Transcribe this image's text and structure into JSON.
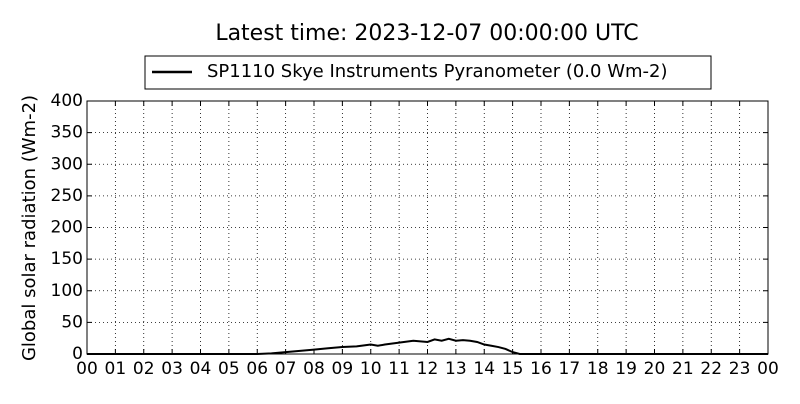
{
  "chart_data": {
    "type": "line",
    "title": "Latest time: 2023-12-07 00:00:00 UTC",
    "y_label": "Global solar radiation (Wm-2)",
    "x": [
      0,
      1,
      2,
      3,
      4,
      5,
      6,
      6.5,
      7,
      7.5,
      8,
      8.5,
      9,
      9.5,
      10,
      10.25,
      10.5,
      11,
      11.5,
      12,
      12.25,
      12.5,
      12.75,
      13,
      13.25,
      13.5,
      13.75,
      14,
      14.25,
      14.5,
      14.75,
      15,
      15.25,
      16,
      17,
      18,
      19,
      20,
      21,
      22,
      23,
      24
    ],
    "series": [
      {
        "name": "SP1110 Skye Instruments Pyranometer (0.0 Wm-2)",
        "color": "#000000",
        "values": [
          0,
          0,
          0,
          0,
          0,
          0,
          0,
          1,
          3,
          5,
          7,
          9,
          11,
          12,
          15,
          13,
          15,
          18,
          21,
          19,
          23,
          21,
          24,
          21,
          22,
          21,
          19,
          15,
          13,
          11,
          8,
          3,
          0,
          0,
          0,
          0,
          0,
          0,
          0,
          0,
          0,
          0
        ]
      }
    ],
    "xlim": [
      0,
      24
    ],
    "xticks": [
      {
        "value": 0,
        "label": "00"
      },
      {
        "value": 1,
        "label": "01"
      },
      {
        "value": 2,
        "label": "02"
      },
      {
        "value": 3,
        "label": "03"
      },
      {
        "value": 4,
        "label": "04"
      },
      {
        "value": 5,
        "label": "05"
      },
      {
        "value": 6,
        "label": "06"
      },
      {
        "value": 7,
        "label": "07"
      },
      {
        "value": 8,
        "label": "08"
      },
      {
        "value": 9,
        "label": "09"
      },
      10,
      11,
      12,
      13,
      14,
      15,
      16,
      17,
      18,
      19,
      20,
      21,
      22,
      23,
      {
        "value": 24,
        "label": "00"
      }
    ],
    "ylim": [
      0,
      400
    ],
    "yticks": [
      0,
      50,
      100,
      150,
      200,
      250,
      300,
      350,
      400
    ],
    "grid": true,
    "legend": "top"
  }
}
